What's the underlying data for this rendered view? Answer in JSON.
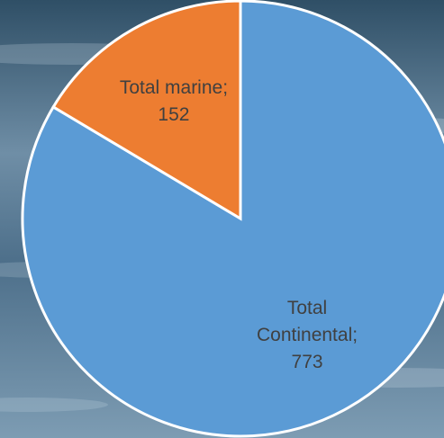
{
  "chart_data": {
    "type": "pie",
    "values": [
      773,
      152
    ],
    "value_labels": [
      "Total Continental; 773",
      "Total marine; 152"
    ],
    "colors": [
      "#5b9bd5",
      "#ed7d31"
    ]
  }
}
